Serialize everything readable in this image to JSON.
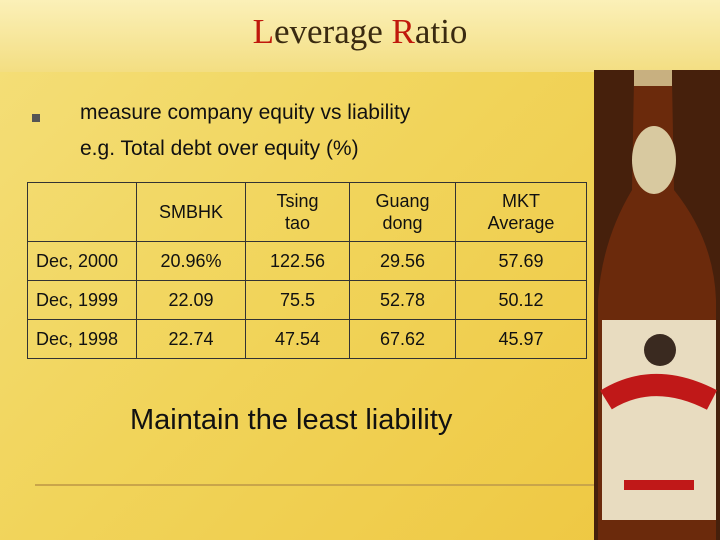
{
  "title": "Leverage Ratio",
  "bullet": {
    "lines": [
      "measure company equity vs liability",
      "e.g. Total debt over equity (%)"
    ]
  },
  "table": {
    "columns": [
      "SMBHK",
      "Tsing tao",
      "Guang dong",
      "MKT Average"
    ],
    "rows": [
      {
        "label": "Dec, 2000",
        "cells": [
          "20.96%",
          "122.56",
          "29.56",
          "57.69"
        ]
      },
      {
        "label": "Dec, 1999",
        "cells": [
          "22.09",
          "75.5",
          "52.78",
          "50.12"
        ]
      },
      {
        "label": "Dec, 1998",
        "cells": [
          "22.74",
          "47.54",
          "67.62",
          "45.97"
        ]
      }
    ]
  },
  "footer": "Maintain the least liability"
}
